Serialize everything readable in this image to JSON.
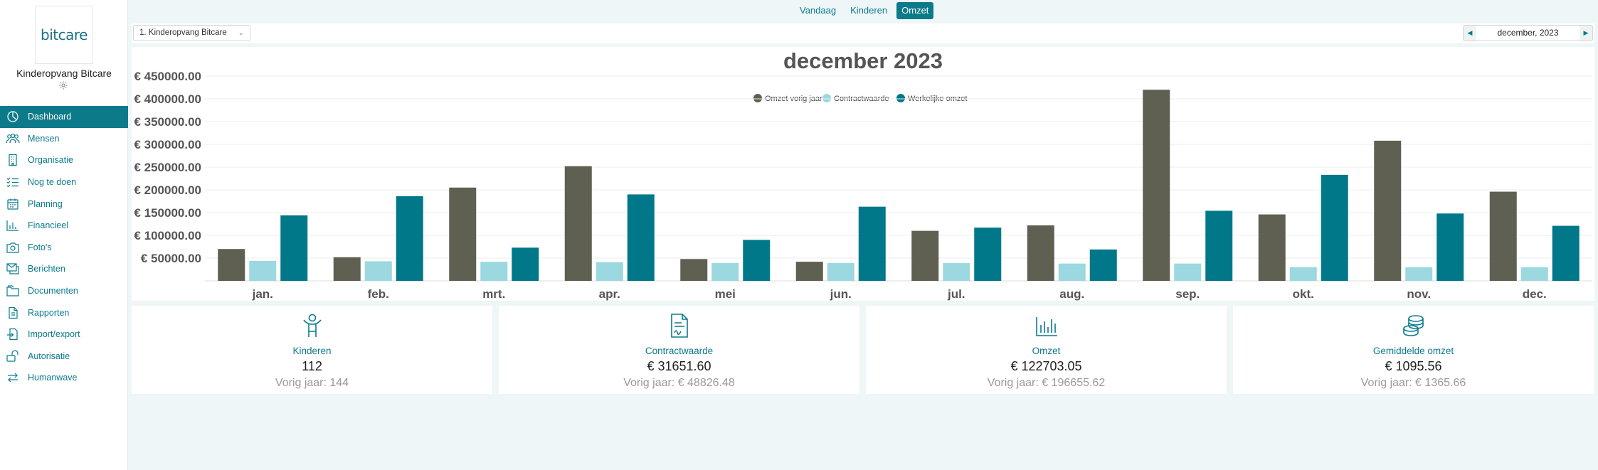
{
  "sidebar": {
    "logo": "bitcare",
    "org_name": "Kinderopvang Bitcare",
    "items": [
      {
        "label": "Dashboard",
        "icon": "dashboard-icon",
        "active": true
      },
      {
        "label": "Mensen",
        "icon": "people-icon"
      },
      {
        "label": "Organisatie",
        "icon": "building-icon"
      },
      {
        "label": "Nog te doen",
        "icon": "checklist-icon"
      },
      {
        "label": "Planning",
        "icon": "calendar-icon"
      },
      {
        "label": "Financieel",
        "icon": "bar-chart-icon"
      },
      {
        "label": "Foto's",
        "icon": "camera-icon"
      },
      {
        "label": "Berichten",
        "icon": "messages-icon"
      },
      {
        "label": "Documenten",
        "icon": "folder-icon"
      },
      {
        "label": "Rapporten",
        "icon": "report-icon"
      },
      {
        "label": "Import/export",
        "icon": "import-export-icon"
      },
      {
        "label": "Autorisatie",
        "icon": "lock-icon"
      },
      {
        "label": "Humanwave",
        "icon": "arrows-icon"
      }
    ]
  },
  "tabs": [
    {
      "label": "Vandaag"
    },
    {
      "label": "Kinderen"
    },
    {
      "label": "Omzet",
      "active": true
    }
  ],
  "filter": {
    "organization": "1. Kinderopvang Bitcare",
    "period": "december, 2023"
  },
  "colors": {
    "accent": "#0d7a8a",
    "prev_year": "#5f5f52",
    "contract": "#9bd8e0",
    "actual": "#00788a"
  },
  "chart_data": {
    "type": "bar",
    "title": "december 2023",
    "legend_position": "top-center",
    "grid": true,
    "categories": [
      "jan.",
      "feb.",
      "mrt.",
      "apr.",
      "mei",
      "jun.",
      "jul.",
      "aug.",
      "sep.",
      "okt.",
      "nov.",
      "dec."
    ],
    "y_ticks": [
      "€ 50000.00",
      "€ 100000.00",
      "€ 150000.00",
      "€ 200000.00",
      "€ 250000.00",
      "€ 300000.00",
      "€ 350000.00",
      "€ 400000.00",
      "€ 450000.00"
    ],
    "ylim": [
      0,
      450000
    ],
    "series": [
      {
        "name": "Omzet vorig jaar",
        "color": "#5f5f52",
        "values": [
          70000,
          52000,
          205000,
          252000,
          48000,
          42000,
          110000,
          122000,
          420000,
          146000,
          308000,
          196000
        ]
      },
      {
        "name": "Contractwaarde",
        "color": "#9bd8e0",
        "values": [
          44000,
          43000,
          42000,
          41000,
          39000,
          39000,
          39000,
          38000,
          38000,
          30000,
          30000,
          30000
        ]
      },
      {
        "name": "Werkelijke omzet",
        "color": "#00788a",
        "values": [
          144000,
          186000,
          73000,
          190000,
          90000,
          163000,
          117000,
          69000,
          154000,
          233000,
          148000,
          121000
        ]
      }
    ]
  },
  "cards": [
    {
      "label": "Kinderen",
      "value": "112",
      "prev": "Vorig jaar: 144",
      "icon": "child-icon"
    },
    {
      "label": "Contractwaarde",
      "value": "€ 31651.60",
      "prev": "Vorig jaar: € 48826.48",
      "icon": "contract-icon"
    },
    {
      "label": "Omzet",
      "value": "€ 122703.05",
      "prev": "Vorig jaar: € 196655.62",
      "icon": "revenue-chart-icon"
    },
    {
      "label": "Gemiddelde omzet",
      "value": "€ 1095.56",
      "prev": "Vorig jaar: € 1365.66",
      "icon": "coins-icon"
    }
  ]
}
